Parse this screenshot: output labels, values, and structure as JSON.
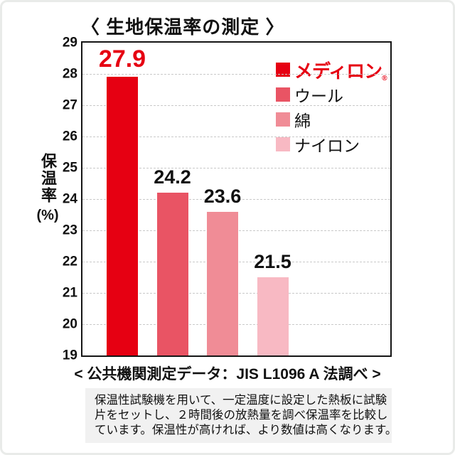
{
  "title": "〈 生地保温率の測定 〉",
  "caption": "< 公共機関測定データ：JIS L1096 A 法調べ >",
  "footnote": {
    "lines": [
      "保温性試験機を用いて、一定温度に設定した熱板に試験",
      "片をセットし、２時間後の放熱量を調べ保温率を比較し",
      "ています。保温性が高ければ、より数値は高くなります。"
    ]
  },
  "y_axis": {
    "label": "保温率",
    "unit": "(%)"
  },
  "legend": {
    "items": [
      {
        "label": "メディロン",
        "registered_mark": "®",
        "swatch_color": "#e60012",
        "text_color": "#e60012",
        "brand": true
      },
      {
        "label": "ウール",
        "swatch_color": "#e95464",
        "text_color": "#111111",
        "brand": false
      },
      {
        "label": "綿",
        "swatch_color": "#f08c96",
        "text_color": "#111111",
        "brand": false
      },
      {
        "label": "ナイロン",
        "swatch_color": "#f8b9c3",
        "text_color": "#111111",
        "brand": false
      }
    ]
  },
  "colors": {
    "accent_red": "#e60012",
    "gridline": "#c9c9c9",
    "footnote_bg": "#f1f1f1"
  },
  "chart_data": {
    "type": "bar",
    "title": "〈 生地保温率の測定 〉",
    "categories": [
      "メディロン",
      "ウール",
      "綿",
      "ナイロン"
    ],
    "values": [
      27.9,
      24.2,
      23.6,
      21.5
    ],
    "value_labels": [
      "27.9",
      "24.2",
      "23.6",
      "21.5"
    ],
    "bar_colors": [
      "#e60012",
      "#e95464",
      "#f08c96",
      "#f8b9c3"
    ],
    "highlight_index": 0,
    "xlabel": "",
    "ylabel": "保温率 (%)",
    "ylim": [
      19,
      29
    ],
    "ytick_step": 1,
    "grid": "horizontal-dashed",
    "legend_position": "top-right-inside"
  }
}
